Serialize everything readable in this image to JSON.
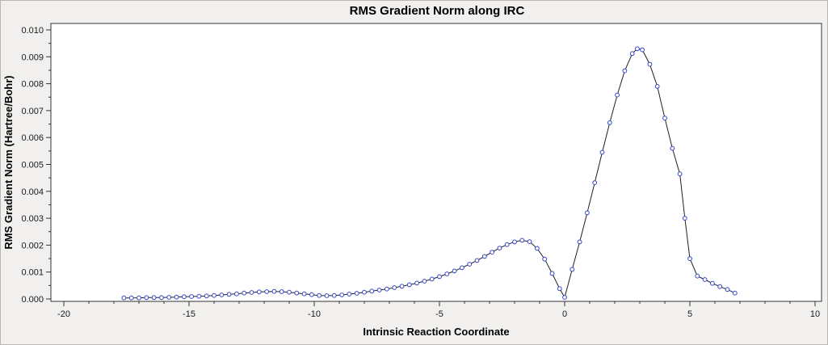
{
  "window": {
    "background": "#f2f0ee"
  },
  "chart_data": {
    "type": "line",
    "title": "RMS Gradient Norm along IRC",
    "xlabel": "Intrinsic Reaction Coordinate",
    "ylabel": "RMS Gradient Norm (Hartree/Bohr)",
    "xlim": [
      -20,
      10
    ],
    "ylim": [
      0,
      0.01
    ],
    "grid": false,
    "legend": null,
    "x_ticks": [
      -20,
      -15,
      -10,
      -5,
      0,
      5,
      10
    ],
    "x_tick_labels": [
      "-20",
      "-15",
      "-10",
      "-5",
      "0",
      "5",
      "10"
    ],
    "y_ticks": [
      0.0,
      0.001,
      0.002,
      0.003,
      0.004,
      0.005,
      0.006,
      0.007,
      0.008,
      0.009,
      0.01
    ],
    "y_tick_labels": [
      "0.000",
      "0.001",
      "0.002",
      "0.003",
      "0.004",
      "0.005",
      "0.006",
      "0.007",
      "0.008",
      "0.009",
      "0.010"
    ],
    "marker_color": "#3344cc",
    "line_color": "#202020",
    "frame_color": "#333333",
    "plot_background": "#ffffff",
    "series": [
      {
        "name": "RMS Gradient Norm",
        "points": [
          [
            -17.6,
            4e-05
          ],
          [
            -17.3,
            4e-05
          ],
          [
            -17.0,
            4e-05
          ],
          [
            -16.7,
            5e-05
          ],
          [
            -16.4,
            5e-05
          ],
          [
            -16.1,
            5e-05
          ],
          [
            -15.8,
            6e-05
          ],
          [
            -15.5,
            7e-05
          ],
          [
            -15.2,
            8e-05
          ],
          [
            -14.9,
            9e-05
          ],
          [
            -14.6,
            0.0001
          ],
          [
            -14.3,
            0.00011
          ],
          [
            -14.0,
            0.00013
          ],
          [
            -13.7,
            0.00015
          ],
          [
            -13.4,
            0.00017
          ],
          [
            -13.1,
            0.00019
          ],
          [
            -12.8,
            0.00022
          ],
          [
            -12.5,
            0.00024
          ],
          [
            -12.2,
            0.00026
          ],
          [
            -11.9,
            0.00027
          ],
          [
            -11.6,
            0.00028
          ],
          [
            -11.3,
            0.00027
          ],
          [
            -11.0,
            0.00025
          ],
          [
            -10.7,
            0.00022
          ],
          [
            -10.4,
            0.00019
          ],
          [
            -10.1,
            0.00016
          ],
          [
            -9.8,
            0.00013
          ],
          [
            -9.5,
            0.00012
          ],
          [
            -9.2,
            0.00013
          ],
          [
            -8.9,
            0.00015
          ],
          [
            -8.6,
            0.00018
          ],
          [
            -8.3,
            0.00021
          ],
          [
            -8.0,
            0.00025
          ],
          [
            -7.7,
            0.00029
          ],
          [
            -7.4,
            0.00033
          ],
          [
            -7.1,
            0.00037
          ],
          [
            -6.8,
            0.00042
          ],
          [
            -6.5,
            0.00047
          ],
          [
            -6.2,
            0.00053
          ],
          [
            -5.9,
            0.00059
          ],
          [
            -5.6,
            0.00066
          ],
          [
            -5.3,
            0.00074
          ],
          [
            -5.0,
            0.00083
          ],
          [
            -4.7,
            0.00093
          ],
          [
            -4.4,
            0.00104
          ],
          [
            -4.1,
            0.00116
          ],
          [
            -3.8,
            0.00129
          ],
          [
            -3.5,
            0.00143
          ],
          [
            -3.2,
            0.00158
          ],
          [
            -2.9,
            0.00174
          ],
          [
            -2.6,
            0.00189
          ],
          [
            -2.3,
            0.00202
          ],
          [
            -2.0,
            0.00212
          ],
          [
            -1.7,
            0.00218
          ],
          [
            -1.4,
            0.00213
          ],
          [
            -1.1,
            0.00188
          ],
          [
            -0.8,
            0.00148
          ],
          [
            -0.5,
            0.00095
          ],
          [
            -0.2,
            0.00038
          ],
          [
            0.0,
            6e-05
          ],
          [
            0.3,
            0.0011
          ],
          [
            0.6,
            0.00212
          ],
          [
            0.9,
            0.0032
          ],
          [
            1.2,
            0.00432
          ],
          [
            1.5,
            0.00545
          ],
          [
            1.8,
            0.00655
          ],
          [
            2.1,
            0.00758
          ],
          [
            2.4,
            0.00848
          ],
          [
            2.7,
            0.00912
          ],
          [
            2.9,
            0.0093
          ],
          [
            3.1,
            0.00926
          ],
          [
            3.4,
            0.00872
          ],
          [
            3.7,
            0.0079
          ],
          [
            4.0,
            0.00672
          ],
          [
            4.3,
            0.0056
          ],
          [
            4.6,
            0.00465
          ],
          [
            4.8,
            0.003
          ],
          [
            5.0,
            0.0015
          ],
          [
            5.3,
            0.00085
          ],
          [
            5.6,
            0.00072
          ],
          [
            5.9,
            0.00058
          ],
          [
            6.2,
            0.00046
          ],
          [
            6.5,
            0.00035
          ],
          [
            6.8,
            0.00022
          ]
        ]
      }
    ]
  }
}
